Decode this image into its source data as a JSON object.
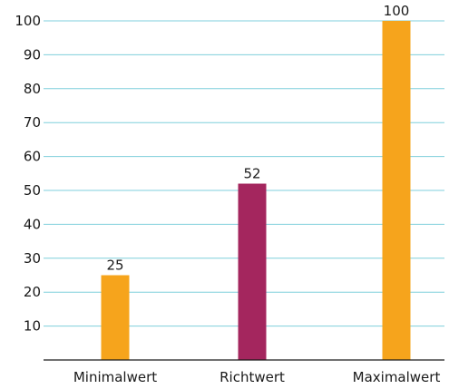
{
  "chart_data": {
    "type": "bar",
    "categories": [
      "Minimalwert",
      "Richtwert",
      "Maximalwert"
    ],
    "values": [
      25,
      52,
      100
    ],
    "data_labels": [
      "25",
      "52",
      "100"
    ],
    "bar_colors": [
      "#f6a41c",
      "#a4265e",
      "#f6a41c"
    ],
    "ylim": [
      0,
      100
    ],
    "yticks": [
      10,
      20,
      30,
      40,
      50,
      60,
      70,
      80,
      90,
      100
    ],
    "ytick_labels": [
      "10",
      "20",
      "30",
      "40",
      "50",
      "60",
      "70",
      "80",
      "90",
      "100"
    ],
    "grid": true,
    "grid_color": "#7fcfdc",
    "axis_color": "#1a1a1a",
    "title": "",
    "xlabel": "",
    "ylabel": ""
  }
}
